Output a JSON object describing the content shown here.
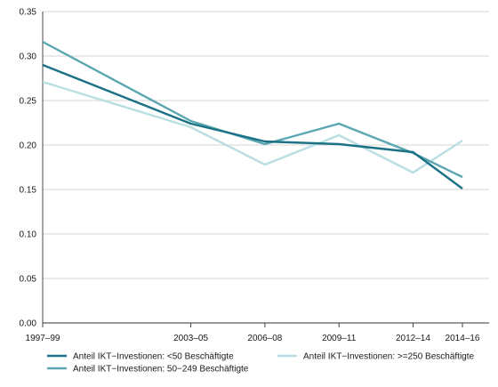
{
  "chart_data": {
    "type": "line",
    "title": "",
    "xlabel": "",
    "ylabel": "",
    "categories": [
      "1997–99",
      "2003–05",
      "2006–08",
      "2009–11",
      "2012–14",
      "2014–16"
    ],
    "x_years": [
      1998,
      2004,
      2007,
      2010,
      2013,
      2015
    ],
    "ylim": [
      0,
      0.35
    ],
    "yticks": [
      "0.00",
      "0.05",
      "0.10",
      "0.15",
      "0.20",
      "0.25",
      "0.30",
      "0.35"
    ],
    "ytick_values": [
      0,
      0.05,
      0.1,
      0.15,
      0.2,
      0.25,
      0.3,
      0.35
    ],
    "grid": true,
    "legend_position": "bottom",
    "series": [
      {
        "name": "Anteil IKT−Investionen: <50 Beschäftigte",
        "color": "#1b7185",
        "values": [
          0.29,
          0.224,
          0.204,
          0.201,
          0.192,
          0.151
        ]
      },
      {
        "name": "Anteil IKT−Investionen: 50−249 Beschäftigte",
        "color": "#5ba7b1",
        "values": [
          0.316,
          0.227,
          0.201,
          0.224,
          0.191,
          0.164
        ]
      },
      {
        "name": "Anteil IKT−Investionen: >=250 Beschäftigte",
        "color": "#b9dfe3",
        "values": [
          0.271,
          0.22,
          0.178,
          0.211,
          0.169,
          0.205
        ]
      }
    ]
  }
}
